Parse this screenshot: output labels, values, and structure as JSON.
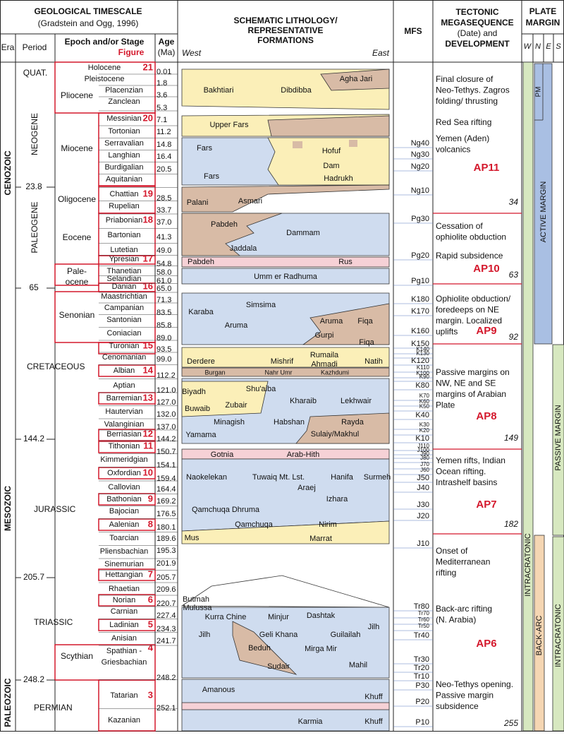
{
  "header": {
    "timescale_title": "GEOLOGICAL TIMESCALE",
    "timescale_source": "(Gradstein and Ogg, 1996)",
    "era": "Era",
    "period": "Period",
    "epoch_stage": "Epoch and/or Stage",
    "figure": "Figure",
    "age": "Age",
    "age_unit": "(Ma)",
    "lithology_title": [
      "SCHEMATIC LITHOLOGY/",
      "REPRESENTATIVE",
      "FORMATIONS"
    ],
    "west": "West",
    "east": "East",
    "mfs": "MFS",
    "tectonic_title": [
      "TECTONIC",
      "MEGASEQUENCE",
      "(Date) and",
      "DEVELOPMENT"
    ],
    "plate_title": [
      "PLATE",
      "MARGIN"
    ],
    "plate_columns": [
      "W",
      "N",
      "E",
      "S"
    ]
  },
  "eras": [
    "CENOZOIC",
    "MESOZOIC",
    "PALEOZOIC"
  ],
  "periods": [
    "QUAT.",
    "NEOGENE",
    "PALEOGENE",
    "CRETACEOUS",
    "JURASSIC",
    "TRIASSIC",
    "PERMIAN"
  ],
  "boundary_ages": [
    "23.8",
    "65",
    "144.2",
    "205.7",
    "248.2"
  ],
  "epochs": [
    "Pliocene",
    "Miocene",
    "Oligocene",
    "Eocene",
    [
      "Pale-",
      "ocene"
    ],
    "Senonian",
    "Scythian"
  ],
  "stages": [
    {
      "name": "Holocene",
      "fig": "21"
    },
    {
      "name": "Pleistocene"
    },
    {
      "name": "Placenzian"
    },
    {
      "name": "Zanclean"
    },
    {
      "name": "Messinian",
      "fig": "20"
    },
    {
      "name": "Tortonian"
    },
    {
      "name": "Serravalian"
    },
    {
      "name": "Langhian"
    },
    {
      "name": "Burdigalian"
    },
    {
      "name": "Aquitanian"
    },
    {
      "name": "Chattian",
      "fig": "19"
    },
    {
      "name": "Rupelian"
    },
    {
      "name": "Priabonian",
      "fig": "18"
    },
    {
      "name": "Bartonian"
    },
    {
      "name": "Lutetian"
    },
    {
      "name": "Ypresian",
      "fig": "17"
    },
    {
      "name": "Thanetian"
    },
    {
      "name": "Selandian"
    },
    {
      "name": "Danian",
      "fig": "16"
    },
    {
      "name": "Maastrichtian"
    },
    {
      "name": "Campanian"
    },
    {
      "name": "Santonian"
    },
    {
      "name": "Coniacian"
    },
    {
      "name": "Turonian",
      "fig": "15"
    },
    {
      "name": "Cenomanian"
    },
    {
      "name": "Albian",
      "fig": "14"
    },
    {
      "name": "Aptian"
    },
    {
      "name": "Barremian",
      "fig": "13"
    },
    {
      "name": "Hautervian"
    },
    {
      "name": "Valanginian"
    },
    {
      "name": "Berriasian",
      "fig": "12"
    },
    {
      "name": "Tithonian",
      "fig": "11"
    },
    {
      "name": "Kimmeridgian"
    },
    {
      "name": "Oxfordian",
      "fig": "10"
    },
    {
      "name": "Callovian"
    },
    {
      "name": "Bathonian",
      "fig": "9"
    },
    {
      "name": "Bajocian"
    },
    {
      "name": "Aalenian",
      "fig": "8"
    },
    {
      "name": "Toarcian"
    },
    {
      "name": "Pliensbachian"
    },
    {
      "name": "Sinemurian"
    },
    {
      "name": "Hettangian",
      "fig": "7"
    },
    {
      "name": "Rhaetian"
    },
    {
      "name": "Norian",
      "fig": "6"
    },
    {
      "name": "Carnian"
    },
    {
      "name": "Ladinian",
      "fig": "5"
    },
    {
      "name": "Anisian"
    },
    {
      "name": [
        "Spathian -",
        "Griesbachian"
      ],
      "fig": "4"
    },
    {
      "name": "Tatarian",
      "fig": "3"
    },
    {
      "name": "Kazanian"
    }
  ],
  "ages": [
    "0.01",
    "1.8",
    "3.6",
    "5.3",
    "7.1",
    "11.2",
    "14.8",
    "16.4",
    "20.5",
    "28.5",
    "33.7",
    "37.0",
    "41.3",
    "49.0",
    "54.8",
    "58.0",
    "61.0",
    "65.0",
    "71.3",
    "83.5",
    "85.8",
    "89.0",
    "93.5",
    "99.0",
    "112.2",
    "121.0",
    "127.0",
    "132.0",
    "137.0",
    "144.2",
    "150.7",
    "154.1",
    "159.4",
    "164.4",
    "169.2",
    "176.5",
    "180.1",
    "189.6",
    "195.3",
    "201.9",
    "205.7",
    "209.6",
    "220.7",
    "227.4",
    "234.3",
    "241.7",
    "248.2",
    "252.1"
  ],
  "formations": [
    "Agha Jari",
    "Bakhtiari",
    "Dibdibba",
    "Upper Fars",
    "Fars",
    "Hofuf",
    "Dam",
    "Fars",
    "Hadrukh",
    "Asmari",
    "Palani",
    "Pabdeh",
    "Dammam",
    "Jaddala",
    "Pabdeh",
    "Rus",
    "Umm er Radhuma",
    "Simsima",
    "Karaba",
    "Aruma",
    "Aruma",
    "Fiqa",
    "Gurpi",
    "Fiqa",
    "Rumaila",
    "Derdere",
    "Mishrif",
    "Ahmadi",
    "Natih",
    "Burgan",
    "Nahr Umr",
    "Kazhdumi",
    "Shu'aiba",
    "Biyadh",
    "Zubair",
    "Kharaib",
    "Lekhwair",
    "Buwaib",
    "Minagish",
    "Habshan",
    "Rayda",
    "Sulaiy/Makhul",
    "Yamama",
    "Gotnia",
    "Arab-Hith",
    "Naokelekan",
    "Tuwaiq Mt. Lst.",
    "Hanifa",
    "Surmeh",
    "Araej",
    "Izhara",
    "Qamchuqa Dhruma",
    "Qamchuqa",
    "Nirim",
    "Mus",
    "Marrat",
    "Butmah",
    "Mulussa",
    "Minjur",
    "Kurra Chine",
    "Dashtak",
    "Jilh",
    "Geli Khana",
    "Guilailah",
    "Jilh",
    "Beduh",
    "Mirga Mir",
    "Mahil",
    "Sudair",
    "Amanous",
    "Khuff",
    "Karmia",
    "Khuff"
  ],
  "mfs": [
    "Ng40",
    "Ng30",
    "Ng20",
    "Ng10",
    "Pg30",
    "Pg20",
    "Pg10",
    "K180",
    "K170",
    "K160",
    "K150",
    "K140",
    "K130",
    "K120",
    "K110",
    "K100",
    "K90",
    "K80",
    "K70",
    "K60",
    "K50",
    "K40",
    "K30",
    "K20",
    "K10",
    "J110",
    "J100",
    "J90",
    "J80",
    "J70",
    "J60",
    "J50",
    "J40",
    "J30",
    "J20",
    "J10",
    "Tr80",
    "Tr70",
    "Tr60",
    "Tr50",
    "Tr40",
    "Tr30",
    "Tr20",
    "Tr10",
    "P30",
    "P20",
    "P10"
  ],
  "tectonic": {
    "notes": [
      [
        "Final closure of",
        "Neo-Tethys. Zagros",
        "folding/ thrusting"
      ],
      [
        "Red Sea rifting"
      ],
      [
        "Yemen (Aden)",
        "volcanics"
      ],
      [
        "Cessation of",
        "ophiolite obduction"
      ],
      [
        "Rapid subsidence"
      ],
      [
        "Ophiolite obduction/",
        "foredeeps on NE",
        "margin. Localized",
        "uplifts"
      ],
      [
        "Passive margins on",
        "NW, NE and SE",
        "margins of Arabian",
        "Plate"
      ],
      [
        "Yemen rifts, Indian",
        "Ocean rifting.",
        "Intrashelf basins"
      ],
      [
        "Onset of",
        "Mediterranean",
        "rifting"
      ],
      [
        "Back-arc rifting",
        "(N. Arabia)"
      ],
      [
        "Neo-Tethys opening.",
        "Passive margin",
        "subsidence"
      ]
    ],
    "megasequences": [
      "AP11",
      "AP10",
      "AP9",
      "AP8",
      "AP7",
      "AP6"
    ],
    "dates": [
      "34",
      "63",
      "92",
      "149",
      "182",
      "255"
    ]
  },
  "plate_margin": [
    "PM",
    "ACTIVE MARGIN",
    "PASSIVE MARGIN",
    "INTRACRATONIC",
    "BACK-ARC",
    "INTRACRATONIC"
  ]
}
